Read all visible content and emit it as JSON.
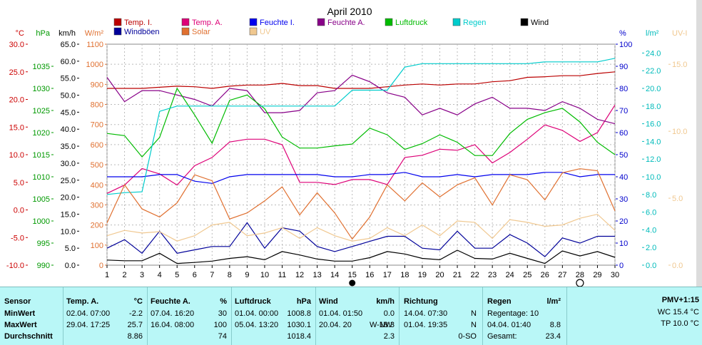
{
  "chart_data": {
    "type": "line",
    "title": "April 2010",
    "x": [
      1,
      2,
      3,
      4,
      5,
      6,
      7,
      8,
      9,
      10,
      11,
      12,
      13,
      14,
      15,
      16,
      17,
      18,
      19,
      20,
      21,
      22,
      23,
      24,
      25,
      26,
      27,
      28,
      29,
      30
    ],
    "x_tick_labels": [
      "1",
      "2",
      "3",
      "4",
      "5",
      "6",
      "7",
      "8",
      "9",
      "10",
      "11",
      "12",
      "13",
      "14",
      "15",
      "16",
      "17",
      "18",
      "19",
      "20",
      "21",
      "22",
      "23",
      "24",
      "25",
      "26",
      "27",
      "28",
      "29",
      "30"
    ],
    "grid": true,
    "legend_placement": "top",
    "axes": {
      "temp": {
        "unit": "°C",
        "color": "#cc0000",
        "range": [
          -10,
          30
        ],
        "ticks": [
          "30.0",
          "25.0",
          "20.0",
          "15.0",
          "10.0",
          "5.0",
          "0.0",
          "-5.0",
          "-10.0"
        ]
      },
      "pressure": {
        "unit": "hPa",
        "color": "#009900",
        "range": [
          990,
          1040
        ],
        "ticks": [
          "1035",
          "1030",
          "1025",
          "1020",
          "1015",
          "1010",
          "1005",
          "1000",
          "995",
          "990"
        ]
      },
      "wind": {
        "unit": "km/h",
        "color": "#000000",
        "range": [
          0,
          65
        ],
        "ticks": [
          "65.0",
          "60.0",
          "55.0",
          "50.0",
          "45.0",
          "40.0",
          "35.0",
          "30.0",
          "25.0",
          "20.0",
          "15.0",
          "10.0",
          "5.0",
          "0.0"
        ]
      },
      "solar": {
        "unit": "W/m²",
        "color": "#e07030",
        "range": [
          0,
          1100
        ],
        "ticks": [
          "1100",
          "1000",
          "900",
          "800",
          "700",
          "600",
          "500",
          "400",
          "300",
          "200",
          "100",
          "0"
        ]
      },
      "humidity": {
        "unit": "%",
        "color": "#0000cc",
        "range": [
          0,
          100
        ],
        "ticks": [
          "100",
          "90",
          "80",
          "70",
          "60",
          "50",
          "40",
          "30",
          "20",
          "10",
          "0"
        ]
      },
      "rain": {
        "unit": "l/m²",
        "color": "#00bbbb",
        "range": [
          0,
          25
        ],
        "ticks": [
          "24.0",
          "22.0",
          "20.0",
          "18.0",
          "16.0",
          "14.0",
          "12.0",
          "10.0",
          "8.0",
          "6.0",
          "4.0",
          "2.0",
          "0.0"
        ]
      },
      "uv": {
        "unit": "UV-I",
        "color": "#f0c890",
        "range": [
          0,
          16.5
        ],
        "ticks": [
          "15.0",
          "10.0",
          "5.0",
          "0.0"
        ]
      }
    },
    "series": [
      {
        "name": "Temp. I.",
        "axis": "temp",
        "color": "#bb0000",
        "values": [
          22.0,
          22.0,
          22.0,
          22.2,
          22.4,
          22.3,
          22.0,
          22.4,
          22.6,
          22.6,
          22.9,
          22.5,
          22.5,
          22.0,
          22.0,
          22.0,
          22.3,
          22.6,
          22.8,
          22.6,
          22.8,
          22.8,
          23.2,
          23.4,
          24.0,
          24.1,
          24.3,
          24.3,
          24.7,
          25.0
        ]
      },
      {
        "name": "Temp. A.",
        "axis": "temp",
        "color": "#dd0077",
        "values": [
          3.0,
          4.5,
          7.5,
          6.5,
          4.5,
          8.0,
          9.5,
          12.3,
          12.8,
          12.8,
          11.8,
          5.0,
          5.0,
          4.6,
          5.5,
          5.5,
          4.6,
          9.5,
          9.9,
          11.0,
          10.8,
          11.8,
          8.5,
          10.4,
          12.8,
          15.4,
          14.4,
          12.4,
          14.0,
          19.0
        ]
      },
      {
        "name": "Feuchte I.",
        "axis": "humidity",
        "color": "#0000ee",
        "values": [
          40,
          40,
          40,
          41,
          41,
          38,
          37,
          40,
          41,
          41,
          41,
          41,
          41,
          40,
          40,
          41,
          41,
          42,
          40,
          40,
          41,
          40,
          41,
          41,
          41,
          42,
          42,
          40,
          41,
          41
        ]
      },
      {
        "name": "Feuchte A.",
        "axis": "humidity",
        "color": "#880088",
        "values": [
          85,
          74,
          79,
          79,
          77,
          75,
          72,
          80,
          79,
          69,
          69,
          70,
          78,
          79,
          86,
          83,
          78,
          76,
          68,
          71,
          68,
          73,
          76,
          71,
          71,
          70,
          74,
          71,
          66,
          64
        ]
      },
      {
        "name": "Luftdruck",
        "axis": "pressure",
        "color": "#00bb00",
        "values": [
          1019.8,
          1019.3,
          1014.5,
          1018.9,
          1030.0,
          1024.0,
          1017.6,
          1027.3,
          1028.5,
          1025.4,
          1019.0,
          1016.5,
          1016.5,
          1017.0,
          1017.4,
          1021.0,
          1019.5,
          1016.2,
          1017.5,
          1019.5,
          1017.8,
          1014.8,
          1014.8,
          1019.8,
          1023.0,
          1024.5,
          1025.5,
          1022.4,
          1017.8,
          1015.0
        ]
      },
      {
        "name": "Regen",
        "axis": "rain",
        "color": "#00cccc",
        "values": [
          8.0,
          8.2,
          8.3,
          17.4,
          18.0,
          18.0,
          18.0,
          18.0,
          18.0,
          18.0,
          18.0,
          18.0,
          18.0,
          18.0,
          19.8,
          19.8,
          19.8,
          22.4,
          22.8,
          22.8,
          22.8,
          22.8,
          22.8,
          22.8,
          22.8,
          23.0,
          23.0,
          23.0,
          23.0,
          23.4
        ]
      },
      {
        "name": "Wind",
        "axis": "wind",
        "color": "#000000",
        "values": [
          1.5,
          1.3,
          1.3,
          3.5,
          0.5,
          0.8,
          1.2,
          2.0,
          2.5,
          1.6,
          4.0,
          3.0,
          1.8,
          1.2,
          1.2,
          2.2,
          4.0,
          3.3,
          2.0,
          1.6,
          4.4,
          2.0,
          1.8,
          3.5,
          2.0,
          0.5,
          4.2,
          2.7,
          4.0,
          2.3
        ]
      },
      {
        "name": "Windböen",
        "axis": "wind",
        "color": "#000099",
        "values": [
          5.0,
          7.5,
          3.5,
          10.0,
          3.5,
          4.5,
          5.5,
          5.5,
          12.5,
          5.0,
          11.0,
          10.0,
          5.5,
          4.0,
          5.5,
          7.0,
          8.5,
          8.5,
          5.0,
          4.5,
          10.0,
          5.0,
          5.0,
          9.0,
          6.5,
          2.5,
          8.0,
          6.5,
          8.5,
          8.5
        ]
      },
      {
        "name": "Solar",
        "axis": "solar",
        "color": "#e07030",
        "values": [
          210,
          400,
          280,
          240,
          310,
          450,
          420,
          230,
          260,
          320,
          390,
          250,
          360,
          260,
          130,
          240,
          400,
          320,
          410,
          340,
          400,
          435,
          300,
          450,
          425,
          325,
          460,
          480,
          470,
          270
        ]
      },
      {
        "name": "UV",
        "axis": "uv",
        "color": "#f0c890",
        "values": [
          2.2,
          2.6,
          2.4,
          2.5,
          1.8,
          2.2,
          3.0,
          3.2,
          2.2,
          2.4,
          2.8,
          2.0,
          2.8,
          2.2,
          1.8,
          2.0,
          2.8,
          2.2,
          3.0,
          2.2,
          3.3,
          3.2,
          2.0,
          3.4,
          3.2,
          2.9,
          3.0,
          3.5,
          3.8,
          2.6
        ]
      }
    ],
    "markers": {
      "new_moon_day": 15,
      "full_moon_day": 28
    }
  },
  "stats": {
    "sensor": {
      "header": "Sensor",
      "rows": [
        "MinWert",
        "MaxWert",
        "Durchschnitt"
      ]
    },
    "temp": {
      "header": "Temp. A.",
      "unit": "°C",
      "min_date": "02.04.  07:00",
      "min_val": "-2.2",
      "max_date": "29.04.  17:25",
      "max_val": "25.7",
      "avg": "8.86"
    },
    "humidity": {
      "header": "Feuchte A.",
      "unit": "%",
      "min_date": "07.04.  16:20",
      "min_val": "30",
      "max_date": "16.04.  08:00",
      "max_val": "100",
      "avg": "74"
    },
    "pressure": {
      "header": "Luftdruck",
      "unit": "hPa",
      "min_date": "01.04.  00:00",
      "min_val": "1008.8",
      "max_date": "05.04.  13:20",
      "max_val": "1030.1",
      "avg": "1018.4"
    },
    "wind": {
      "header": "Wind",
      "unit": "km/h",
      "min_date": "01.04.  01:50",
      "min_val": "0.0",
      "max_date": "20.04.  20",
      "max_dir": "W-NW",
      "max_val": "18.3",
      "avg": "2.3"
    },
    "direction": {
      "header": "Richtung",
      "min_date": "14.04.  07:30",
      "min_val": "N",
      "max_date": "01.04.  19:35",
      "max_val": "N",
      "avg": "0-SO"
    },
    "rain": {
      "header": "Regen",
      "unit": "l/m²",
      "row1": "Regentage: 10",
      "row2_date": "04.04.  01:40",
      "row2_val": "8.8",
      "row3_label": "Gesamt:",
      "row3_val": "23.4"
    },
    "pmv": {
      "title": "PMV+1:15",
      "wc": "WC 15.4 °C",
      "tp": "TP 10.0 °C"
    }
  }
}
